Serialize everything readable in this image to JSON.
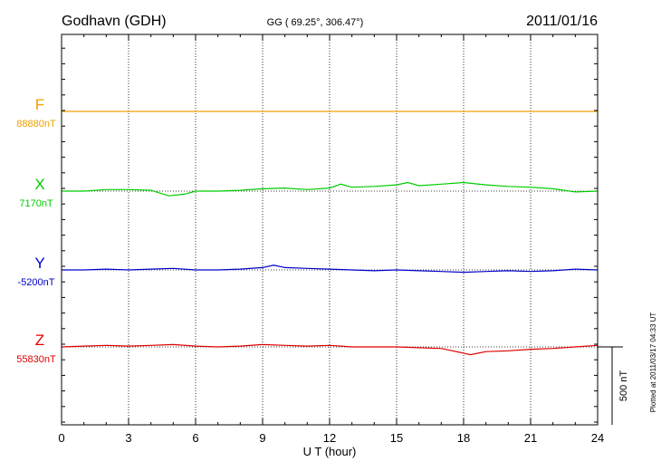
{
  "chart_data": {
    "type": "line",
    "station": "Godhavn (GDH)",
    "coords": "GG ( 69.25°, 306.47°)",
    "date": "2011/01/16",
    "xlabel": "U T (hour)",
    "xlim": [
      0,
      24
    ],
    "xticks": [
      "0",
      "3",
      "6",
      "9",
      "12",
      "15",
      "18",
      "21",
      "24"
    ],
    "grid": true,
    "scale_bar_label": "500 nT",
    "scale_bar_value": 500,
    "plotted_note": "Plotted at 2011/03/17 04:33 UT",
    "series": [
      {
        "name": "F",
        "baseline_label": "88880nT",
        "color": "#f0a000",
        "baseline": 88880,
        "x": [
          0,
          6,
          12,
          18,
          24
        ],
        "values": [
          88880,
          88880,
          88880,
          88880,
          88880
        ]
      },
      {
        "name": "X",
        "baseline_label": "7170nT",
        "color": "#00cc00",
        "baseline": 7170,
        "x": [
          0,
          1,
          2,
          3,
          4,
          4.8,
          5.5,
          6,
          7,
          8,
          9,
          10,
          11,
          12,
          12.5,
          13,
          14,
          15,
          15.5,
          16,
          17,
          18,
          19,
          20,
          21,
          22,
          23,
          24
        ],
        "values": [
          7170,
          7170,
          7180,
          7180,
          7175,
          7140,
          7150,
          7170,
          7170,
          7175,
          7185,
          7190,
          7180,
          7190,
          7215,
          7195,
          7200,
          7210,
          7225,
          7205,
          7215,
          7225,
          7210,
          7200,
          7195,
          7185,
          7165,
          7170
        ]
      },
      {
        "name": "Y",
        "baseline_label": "-5200nT",
        "color": "#0000cc",
        "baseline": -5200,
        "x": [
          0,
          1,
          2,
          3,
          4,
          5,
          6,
          7,
          8,
          9,
          9.5,
          10,
          11,
          12,
          13,
          14,
          15,
          16,
          17,
          18,
          19,
          20,
          21,
          22,
          23,
          24
        ],
        "values": [
          -5200,
          -5200,
          -5195,
          -5200,
          -5195,
          -5190,
          -5200,
          -5200,
          -5195,
          -5185,
          -5170,
          -5185,
          -5190,
          -5195,
          -5200,
          -5205,
          -5200,
          -5205,
          -5210,
          -5215,
          -5210,
          -5205,
          -5210,
          -5205,
          -5195,
          -5200
        ]
      },
      {
        "name": "Z",
        "baseline_label": "55830nT",
        "color": "#dd0000",
        "baseline": 55830,
        "x": [
          0,
          1,
          2,
          3,
          4,
          5,
          6,
          7,
          8,
          9,
          10,
          11,
          12,
          13,
          14,
          15,
          16,
          17,
          17.5,
          18,
          18.3,
          19,
          20,
          21,
          22,
          23,
          24
        ],
        "values": [
          55830,
          55835,
          55840,
          55835,
          55840,
          55845,
          55835,
          55830,
          55835,
          55845,
          55840,
          55835,
          55840,
          55830,
          55830,
          55830,
          55825,
          55820,
          55805,
          55790,
          55780,
          55800,
          55805,
          55815,
          55820,
          55830,
          55840
        ]
      }
    ]
  }
}
